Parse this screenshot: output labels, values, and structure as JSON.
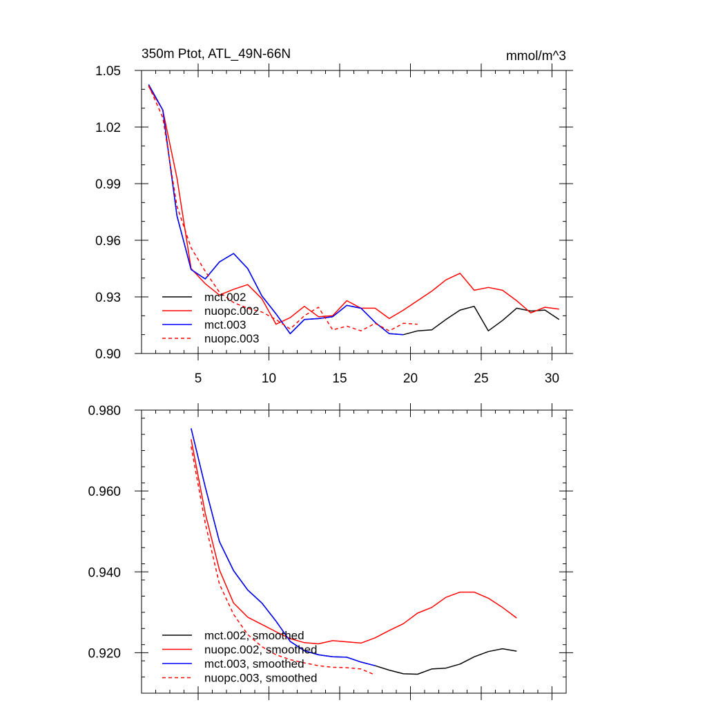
{
  "chart_data": [
    {
      "type": "line",
      "title": "350m Ptot, ATL_49N-66N",
      "units": "mmol/m^3",
      "xlim": [
        1,
        31
      ],
      "ylim": [
        0.9,
        1.05
      ],
      "x_ticks": [
        5,
        10,
        15,
        20,
        25,
        30
      ],
      "y_ticks": [
        0.9,
        0.93,
        0.96,
        0.99,
        1.02,
        1.05
      ],
      "x_tick_labels": [
        "5",
        "10",
        "15",
        "20",
        "25",
        "30"
      ],
      "y_tick_labels": [
        "0.90",
        "0.93",
        "0.96",
        "0.99",
        "1.02",
        "1.05"
      ],
      "grid": false,
      "legend_position": "bottom-left",
      "series": [
        {
          "name": "mct.002",
          "color": "#000000",
          "dash": "solid",
          "x": [
            1.5,
            2.5,
            3.5,
            4.5,
            5.5,
            6.5,
            7.5,
            8.5,
            9.5,
            10.5,
            11.5,
            12.5,
            13.5,
            14.5,
            15.5,
            16.5,
            17.5,
            18.5,
            19.5,
            20.5,
            21.5,
            22.5,
            23.5,
            24.5,
            25.5,
            26.5,
            27.5,
            28.5,
            29.5,
            30.5
          ],
          "y": [
            1.0425,
            1.029,
            0.973,
            0.9445,
            0.9395,
            0.9485,
            0.953,
            0.945,
            0.9305,
            0.921,
            0.9105,
            0.918,
            0.9185,
            0.9195,
            0.9255,
            0.924,
            0.9165,
            0.9105,
            0.91,
            0.912,
            0.9125,
            0.918,
            0.923,
            0.925,
            0.912,
            0.9175,
            0.924,
            0.9225,
            0.923,
            0.918
          ]
        },
        {
          "name": "nuopc.002",
          "color": "#ff0000",
          "dash": "solid",
          "x": [
            1.5,
            2.5,
            3.5,
            4.5,
            5.5,
            6.5,
            7.5,
            8.5,
            9.5,
            10.5,
            11.5,
            12.5,
            13.5,
            14.5,
            15.5,
            16.5,
            17.5,
            18.5,
            19.5,
            20.5,
            21.5,
            22.5,
            23.5,
            24.5,
            25.5,
            26.5,
            27.5,
            28.5,
            29.5,
            30.5
          ],
          "y": [
            1.0415,
            1.029,
            0.993,
            0.945,
            0.937,
            0.931,
            0.934,
            0.9365,
            0.929,
            0.9155,
            0.919,
            0.925,
            0.9195,
            0.92,
            0.928,
            0.924,
            0.924,
            0.9185,
            0.923,
            0.928,
            0.933,
            0.939,
            0.9425,
            0.9335,
            0.935,
            0.9335,
            0.928,
            0.9215,
            0.9245,
            0.9235
          ]
        },
        {
          "name": "mct.003",
          "color": "#0000ff",
          "dash": "solid",
          "x": [
            1.5,
            2.5,
            3.5,
            4.5,
            5.5,
            6.5,
            7.5,
            8.5,
            9.5,
            10.5,
            11.5,
            12.5,
            13.5,
            14.5,
            15.5,
            16.5,
            17.5,
            18.5,
            19.5
          ],
          "y": [
            1.0425,
            1.029,
            0.973,
            0.9445,
            0.9395,
            0.9485,
            0.953,
            0.945,
            0.9305,
            0.921,
            0.9105,
            0.918,
            0.9185,
            0.9195,
            0.9255,
            0.924,
            0.9165,
            0.9105,
            0.91
          ]
        },
        {
          "name": "nuopc.003",
          "color": "#ff0000",
          "dash": "dashed",
          "x": [
            1.5,
            2.5,
            3.5,
            4.5,
            5.5,
            6.5,
            7.5,
            8.5,
            9.5,
            10.5,
            11.5,
            12.5,
            13.5,
            14.5,
            15.5,
            16.5,
            17.5,
            18.5,
            19.5,
            20.5
          ],
          "y": [
            1.042,
            1.025,
            0.978,
            0.956,
            0.9435,
            0.9325,
            0.927,
            0.924,
            0.922,
            0.918,
            0.913,
            0.92,
            0.9245,
            0.9125,
            0.9145,
            0.912,
            0.916,
            0.912,
            0.916,
            0.9155
          ]
        }
      ]
    },
    {
      "type": "line",
      "xlim": [
        1,
        31
      ],
      "ylim": [
        0.91,
        0.98
      ],
      "x_ticks": [
        5,
        10,
        15,
        20,
        25,
        30
      ],
      "y_ticks": [
        0.92,
        0.94,
        0.96,
        0.98
      ],
      "y_tick_labels": [
        "0.920",
        "0.940",
        "0.960",
        "0.980"
      ],
      "grid": false,
      "legend_position": "bottom-left",
      "series": [
        {
          "name": "mct.002, smoothed",
          "color": "#000000",
          "dash": "solid",
          "x": [
            4.5,
            5.5,
            6.5,
            7.5,
            8.5,
            9.5,
            10.5,
            11.5,
            12.5,
            13.5,
            14.5,
            15.5,
            16.5,
            17.5,
            18.5,
            19.5,
            20.5,
            21.5,
            22.5,
            23.5,
            24.5,
            25.5,
            26.5,
            27.5
          ],
          "y": [
            0.9755,
            0.961,
            0.9475,
            0.9403,
            0.9355,
            0.9323,
            0.9278,
            0.9228,
            0.9205,
            0.9195,
            0.919,
            0.9189,
            0.9177,
            0.9168,
            0.9157,
            0.9148,
            0.9147,
            0.916,
            0.9162,
            0.9172,
            0.919,
            0.9203,
            0.921,
            0.9204
          ]
        },
        {
          "name": "nuopc.002, smoothed",
          "color": "#ff0000",
          "dash": "solid",
          "x": [
            4.5,
            5.5,
            6.5,
            7.5,
            8.5,
            9.5,
            10.5,
            11.5,
            12.5,
            13.5,
            14.5,
            15.5,
            16.5,
            17.5,
            18.5,
            19.5,
            20.5,
            21.5,
            22.5,
            23.5,
            24.5,
            25.5,
            26.5,
            27.5
          ],
          "y": [
            0.9728,
            0.9545,
            0.9405,
            0.9323,
            0.9288,
            0.927,
            0.9252,
            0.9235,
            0.9225,
            0.9222,
            0.923,
            0.9227,
            0.9224,
            0.9237,
            0.9255,
            0.9272,
            0.9298,
            0.9312,
            0.9337,
            0.935,
            0.935,
            0.9335,
            0.9312,
            0.9286
          ]
        },
        {
          "name": "mct.003, smoothed",
          "color": "#0000ff",
          "dash": "solid",
          "x": [
            4.5,
            5.5,
            6.5,
            7.5,
            8.5,
            9.5,
            10.5,
            11.5,
            12.5,
            13.5,
            14.5,
            15.5,
            16.5,
            17.5
          ],
          "y": [
            0.9755,
            0.961,
            0.9475,
            0.9403,
            0.9355,
            0.9323,
            0.9278,
            0.9228,
            0.9205,
            0.9195,
            0.919,
            0.9189,
            0.9177,
            0.9168
          ]
        },
        {
          "name": "nuopc.003, smoothed",
          "color": "#ff0000",
          "dash": "dashed",
          "x": [
            4.5,
            5.5,
            6.5,
            7.5,
            8.5,
            9.5,
            10.5,
            11.5,
            12.5,
            13.5,
            14.5,
            15.5,
            16.5,
            17.5
          ],
          "y": [
            0.971,
            0.952,
            0.937,
            0.9295,
            0.9245,
            0.9215,
            0.9195,
            0.9183,
            0.9175,
            0.9168,
            0.9164,
            0.9163,
            0.916,
            0.9145
          ]
        }
      ]
    }
  ]
}
